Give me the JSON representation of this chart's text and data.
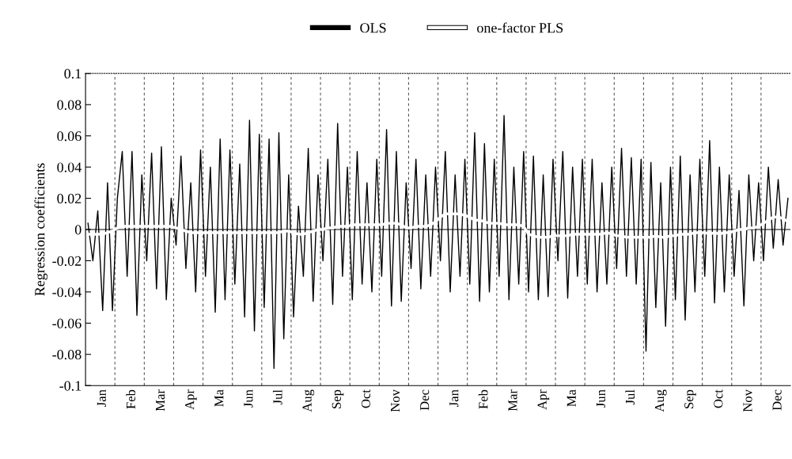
{
  "chart_data": {
    "type": "line",
    "ylabel": "Regression coefficients",
    "categories": [
      null,
      null,
      null,
      "Jan",
      null,
      null,
      null,
      null,
      null,
      "Feb",
      null,
      null,
      null,
      null,
      null,
      "Mar",
      null,
      null,
      null,
      null,
      null,
      "Apr",
      null,
      null,
      null,
      null,
      null,
      "Ma",
      null,
      null,
      null,
      null,
      null,
      "Jun",
      null,
      null,
      null,
      null,
      null,
      "Jul",
      null,
      null,
      null,
      null,
      null,
      "Aug",
      null,
      null,
      null,
      null,
      null,
      "Sep",
      null,
      null,
      null,
      null,
      null,
      "Oct",
      null,
      null,
      null,
      null,
      null,
      "Nov",
      null,
      null,
      null,
      null,
      null,
      "Dec",
      null,
      null,
      null,
      null,
      null,
      "Jan",
      null,
      null,
      null,
      null,
      null,
      "Feb",
      null,
      null,
      null,
      null,
      null,
      "Mar",
      null,
      null,
      null,
      null,
      null,
      "Apr",
      null,
      null,
      null,
      null,
      null,
      "Ma",
      null,
      null,
      null,
      null,
      null,
      "Jun",
      null,
      null,
      null,
      null,
      null,
      "Jul",
      null,
      null,
      null,
      null,
      null,
      "Aug",
      null,
      null,
      null,
      null,
      null,
      "Sep",
      null,
      null,
      null,
      null,
      null,
      "Oct",
      null,
      null,
      null,
      null,
      null,
      "Nov",
      null,
      null,
      null,
      null,
      null,
      "Dec",
      null,
      null
    ],
    "ylim": [
      -0.1,
      0.1
    ],
    "yticks": [
      -0.1,
      -0.08,
      -0.06,
      -0.04,
      -0.02,
      0,
      0.02,
      0.04,
      0.06,
      0.08,
      0.1
    ],
    "grid": "x",
    "legend": "top",
    "marker": "none",
    "line_style": "solid",
    "ref_lines": [
      {
        "axis": "y",
        "value": 0,
        "color": "#000000",
        "line_style": "solid"
      }
    ],
    "series": [
      {
        "name": "OLS",
        "color": "#000000",
        "values": [
          0.004,
          -0.02,
          0.012,
          -0.052,
          0.03,
          -0.052,
          0.02,
          0.05,
          -0.03,
          0.05,
          -0.055,
          0.035,
          -0.02,
          0.049,
          -0.038,
          0.053,
          -0.045,
          0.02,
          -0.01,
          0.047,
          -0.025,
          0.03,
          -0.04,
          0.051,
          -0.03,
          0.04,
          -0.053,
          0.058,
          -0.045,
          0.051,
          -0.035,
          0.042,
          -0.056,
          0.07,
          -0.065,
          0.061,
          -0.05,
          0.058,
          -0.089,
          0.062,
          -0.07,
          0.035,
          -0.056,
          0.015,
          -0.03,
          0.052,
          -0.046,
          0.035,
          -0.02,
          0.045,
          -0.048,
          0.068,
          -0.03,
          0.04,
          -0.045,
          0.05,
          -0.035,
          0.03,
          -0.04,
          0.045,
          -0.03,
          0.064,
          -0.049,
          0.05,
          -0.046,
          0.03,
          -0.025,
          0.045,
          -0.038,
          0.035,
          -0.03,
          0.04,
          -0.02,
          0.05,
          -0.04,
          0.035,
          -0.03,
          0.045,
          -0.035,
          0.062,
          -0.046,
          0.055,
          -0.04,
          0.045,
          -0.03,
          0.073,
          -0.045,
          0.04,
          -0.035,
          0.05,
          -0.04,
          0.047,
          -0.045,
          0.035,
          -0.043,
          0.045,
          -0.02,
          0.05,
          -0.044,
          0.04,
          -0.03,
          0.045,
          -0.035,
          0.045,
          -0.04,
          0.03,
          -0.035,
          0.04,
          -0.025,
          0.052,
          -0.03,
          0.046,
          -0.035,
          0.045,
          -0.078,
          0.043,
          -0.05,
          0.03,
          -0.062,
          0.04,
          -0.045,
          0.047,
          -0.058,
          0.035,
          -0.04,
          0.045,
          -0.03,
          0.057,
          -0.047,
          0.04,
          -0.04,
          0.035,
          -0.03,
          0.025,
          -0.049,
          0.035,
          -0.02,
          0.03,
          -0.02,
          0.04,
          -0.012,
          0.032,
          -0.01,
          0.02
        ]
      },
      {
        "name": "one-factor PLS",
        "color": "#ffffff",
        "values": [
          -0.003,
          -0.003,
          -0.003,
          -0.003,
          -0.002,
          -0.001,
          0.001,
          0.002,
          0.002,
          0.002,
          0.002,
          0.002,
          0.002,
          0.002,
          0.002,
          0.002,
          0.002,
          0.002,
          0.001,
          0,
          -0.001,
          -0.002,
          -0.002,
          -0.002,
          -0.002,
          -0.002,
          -0.002,
          -0.002,
          -0.002,
          -0.002,
          -0.002,
          -0.002,
          -0.002,
          -0.002,
          -0.002,
          -0.002,
          -0.002,
          -0.002,
          -0.002,
          -0.002,
          -0.001,
          -0.001,
          -0.002,
          -0.003,
          -0.003,
          -0.002,
          -0.001,
          0,
          0,
          0.001,
          0.001,
          0.002,
          0.002,
          0.002,
          0.003,
          0.003,
          0.003,
          0.003,
          0.003,
          0.003,
          0.003,
          0.004,
          0.004,
          0.004,
          0.003,
          0.001,
          0.001,
          0.002,
          0.002,
          0.002,
          0.003,
          0.005,
          0.008,
          0.01,
          0.01,
          0.01,
          0.01,
          0.009,
          0.008,
          0.006,
          0.006,
          0.005,
          0.004,
          0.004,
          0.004,
          0.003,
          0.003,
          0.003,
          0.003,
          0.002,
          -0.003,
          -0.004,
          -0.005,
          -0.005,
          -0.005,
          -0.004,
          -0.004,
          -0.004,
          -0.004,
          -0.003,
          -0.003,
          -0.003,
          -0.003,
          -0.003,
          -0.003,
          -0.003,
          -0.002,
          -0.003,
          -0.004,
          -0.004,
          -0.005,
          -0.005,
          -0.005,
          -0.005,
          -0.005,
          -0.005,
          -0.004,
          -0.005,
          -0.005,
          -0.004,
          -0.004,
          -0.003,
          -0.003,
          -0.003,
          -0.002,
          -0.002,
          -0.002,
          -0.003,
          -0.002,
          -0.003,
          -0.002,
          -0.002,
          -0.001,
          0,
          0,
          0.001,
          0.001,
          0.002,
          0.004,
          0.006,
          0.008,
          0.008,
          0.007,
          0.005
        ]
      }
    ]
  }
}
